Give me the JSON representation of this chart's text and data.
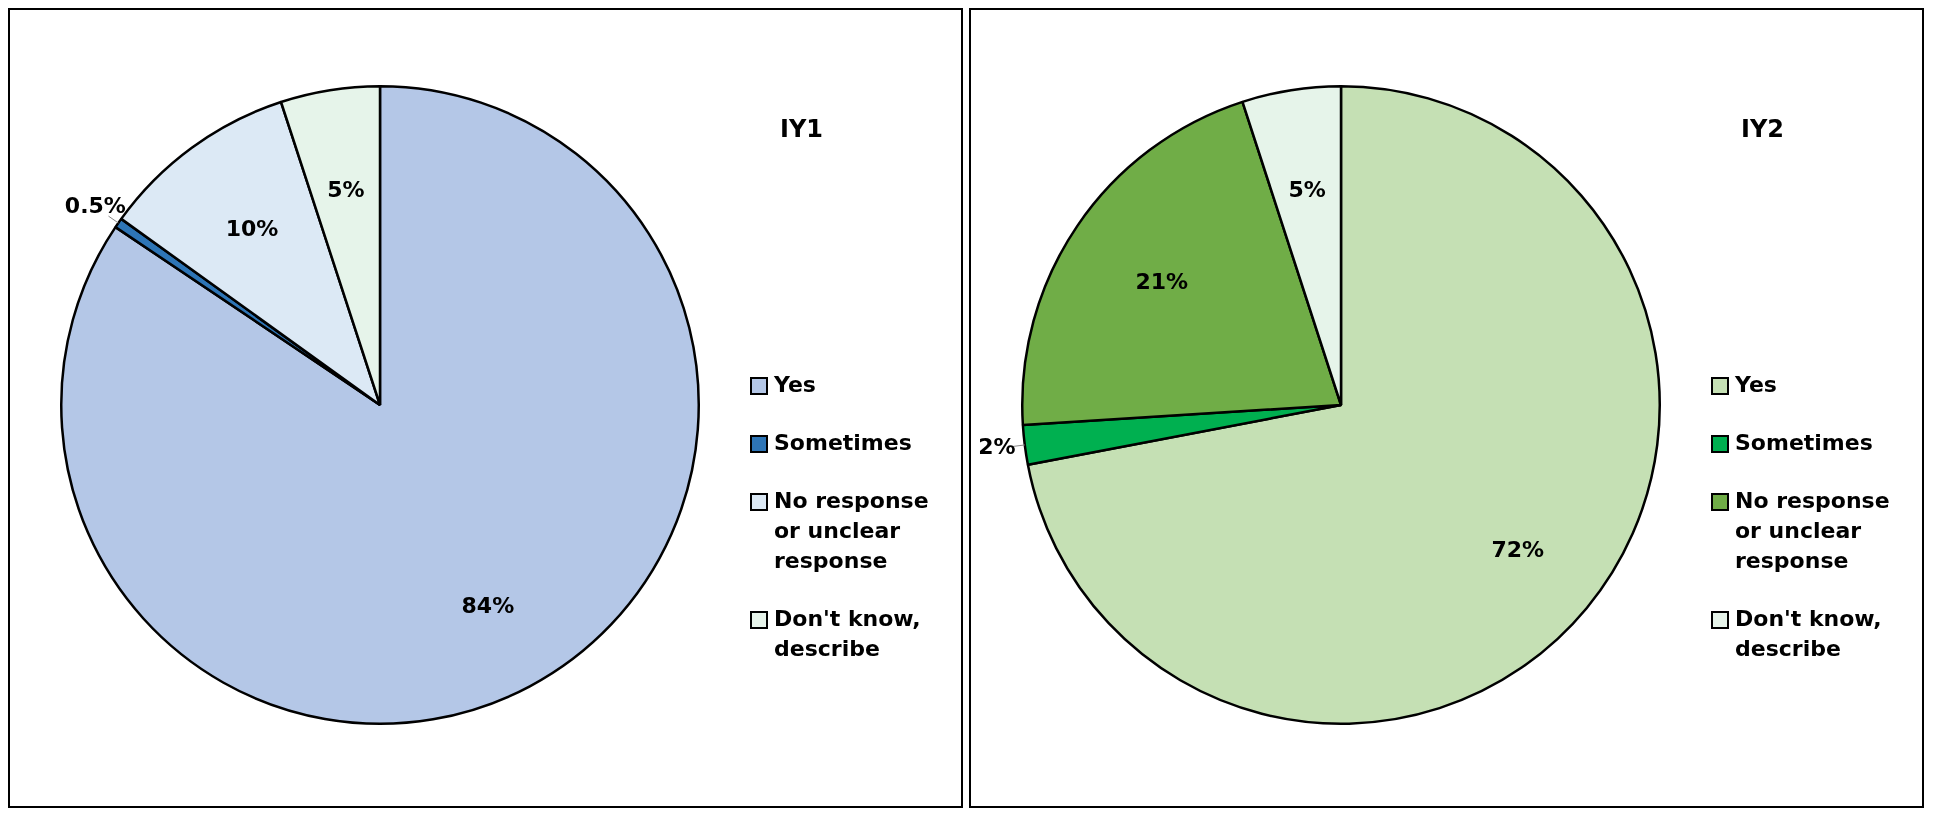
{
  "chart_data": [
    {
      "type": "pie",
      "title": "IY1",
      "categories": [
        "Yes",
        "Sometimes",
        "No response or unclear response",
        "Don't know, describe"
      ],
      "values": [
        84,
        0.5,
        10,
        5
      ],
      "value_labels": [
        "84%",
        "0.5%",
        "10%",
        "5%"
      ],
      "colors": [
        "#b4c7e7",
        "#2e75b6",
        "#dce9f5",
        "#e6f4ea"
      ],
      "legend": "right"
    },
    {
      "type": "pie",
      "title": "IY2",
      "categories": [
        "Yes",
        "Sometimes",
        "No response or unclear response",
        "Don't know, describe"
      ],
      "values": [
        72,
        2,
        21,
        5
      ],
      "value_labels": [
        "72%",
        "2%",
        "21%",
        "5%"
      ],
      "colors": [
        "#c5e0b4",
        "#00b050",
        "#70ad47",
        "#e6f4ea"
      ],
      "legend": "right"
    }
  ]
}
